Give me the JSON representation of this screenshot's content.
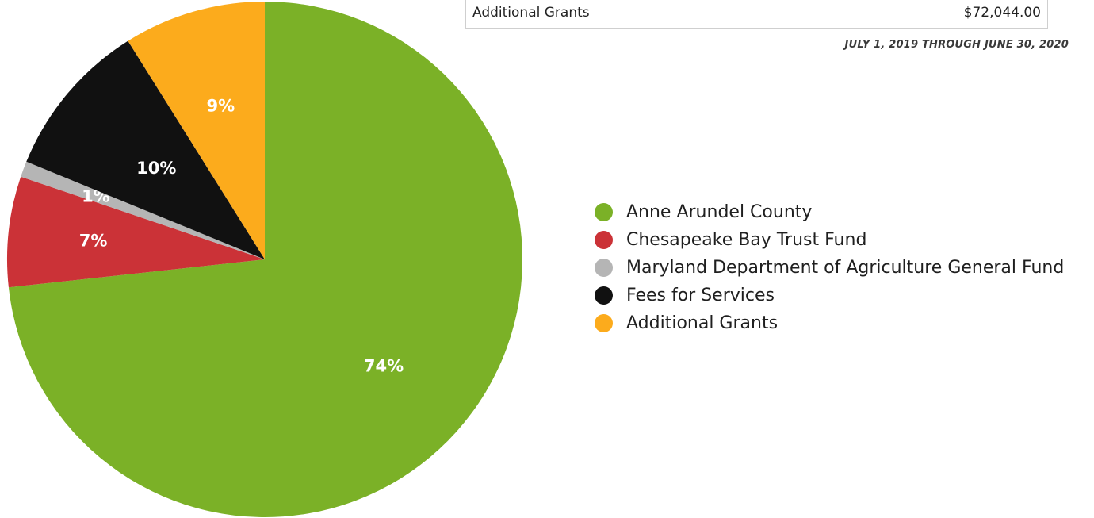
{
  "table": {
    "row_label": "Additional Grants",
    "row_value": "$72,044.00"
  },
  "date_range": "JULY 1, 2019 THROUGH JUNE 30, 2020",
  "chart_data": {
    "type": "pie",
    "slices": [
      {
        "name": "Anne Arundel County",
        "percent": 74,
        "label": "74%",
        "color": "#7bb127",
        "label_color": "#ffffff"
      },
      {
        "name": "Chesapeake Bay Trust Fund",
        "percent": 7,
        "label": "7%",
        "color": "#cb3237",
        "label_color": "#ffffff"
      },
      {
        "name": "Maryland Department of Agriculture General Fund",
        "percent": 1,
        "label": "1%",
        "color": "#b5b5b5",
        "label_color": "#ffffff"
      },
      {
        "name": "Fees for Services",
        "percent": 10,
        "label": "10%",
        "color": "#111111",
        "label_color": "#ffffff"
      },
      {
        "name": "Additional Grants",
        "percent": 9,
        "label": "9%",
        "color": "#fcab1c",
        "label_color": "#ffffff"
      }
    ],
    "start": "12 o'clock",
    "direction": "clockwise",
    "legend": "right"
  }
}
